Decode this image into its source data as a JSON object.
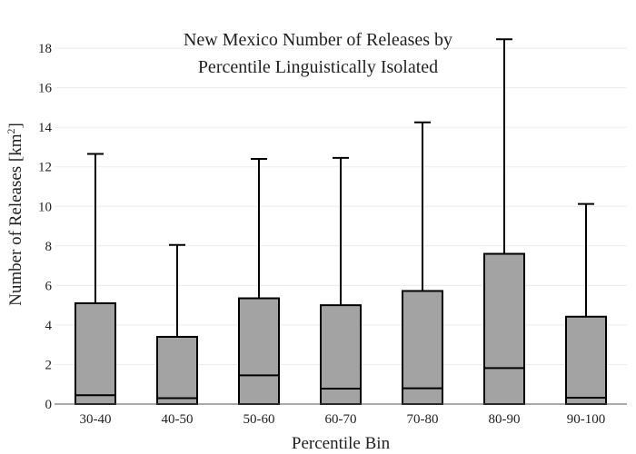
{
  "chart_data": {
    "type": "box",
    "title_lines": [
      "New Mexico Number of Releases by",
      "Percentile Linguistically Isolated"
    ],
    "xlabel": "Percentile Bin",
    "ylabel_main": "Number of Releases  [km",
    "ylabel_sup": "2",
    "ylabel_close": "]",
    "ylim": [
      0,
      18.6
    ],
    "yticks": [
      0,
      2,
      4,
      6,
      8,
      10,
      12,
      14,
      16,
      18
    ],
    "grid": true,
    "categories": [
      "30-40",
      "40-50",
      "50-60",
      "60-70",
      "70-80",
      "80-90",
      "90-100"
    ],
    "boxes": [
      {
        "min": 0,
        "q1": 0,
        "median": 0.45,
        "q3": 5.1,
        "max": 12.65
      },
      {
        "min": 0,
        "q1": 0,
        "median": 0.3,
        "q3": 3.4,
        "max": 8.05
      },
      {
        "min": 0,
        "q1": 0,
        "median": 1.45,
        "q3": 5.35,
        "max": 12.4
      },
      {
        "min": 0,
        "q1": 0,
        "median": 0.78,
        "q3": 5.0,
        "max": 12.45
      },
      {
        "min": 0,
        "q1": 0,
        "median": 0.8,
        "q3": 5.72,
        "max": 14.25
      },
      {
        "min": 0,
        "q1": 0,
        "median": 1.82,
        "q3": 7.6,
        "max": 18.45
      },
      {
        "min": 0,
        "q1": 0,
        "median": 0.32,
        "q3": 4.42,
        "max": 10.12
      }
    ],
    "colors": {
      "box_fill": "#a3a3a3",
      "stroke": "#000000",
      "grid": "#ececec",
      "axis": "#555555"
    }
  }
}
